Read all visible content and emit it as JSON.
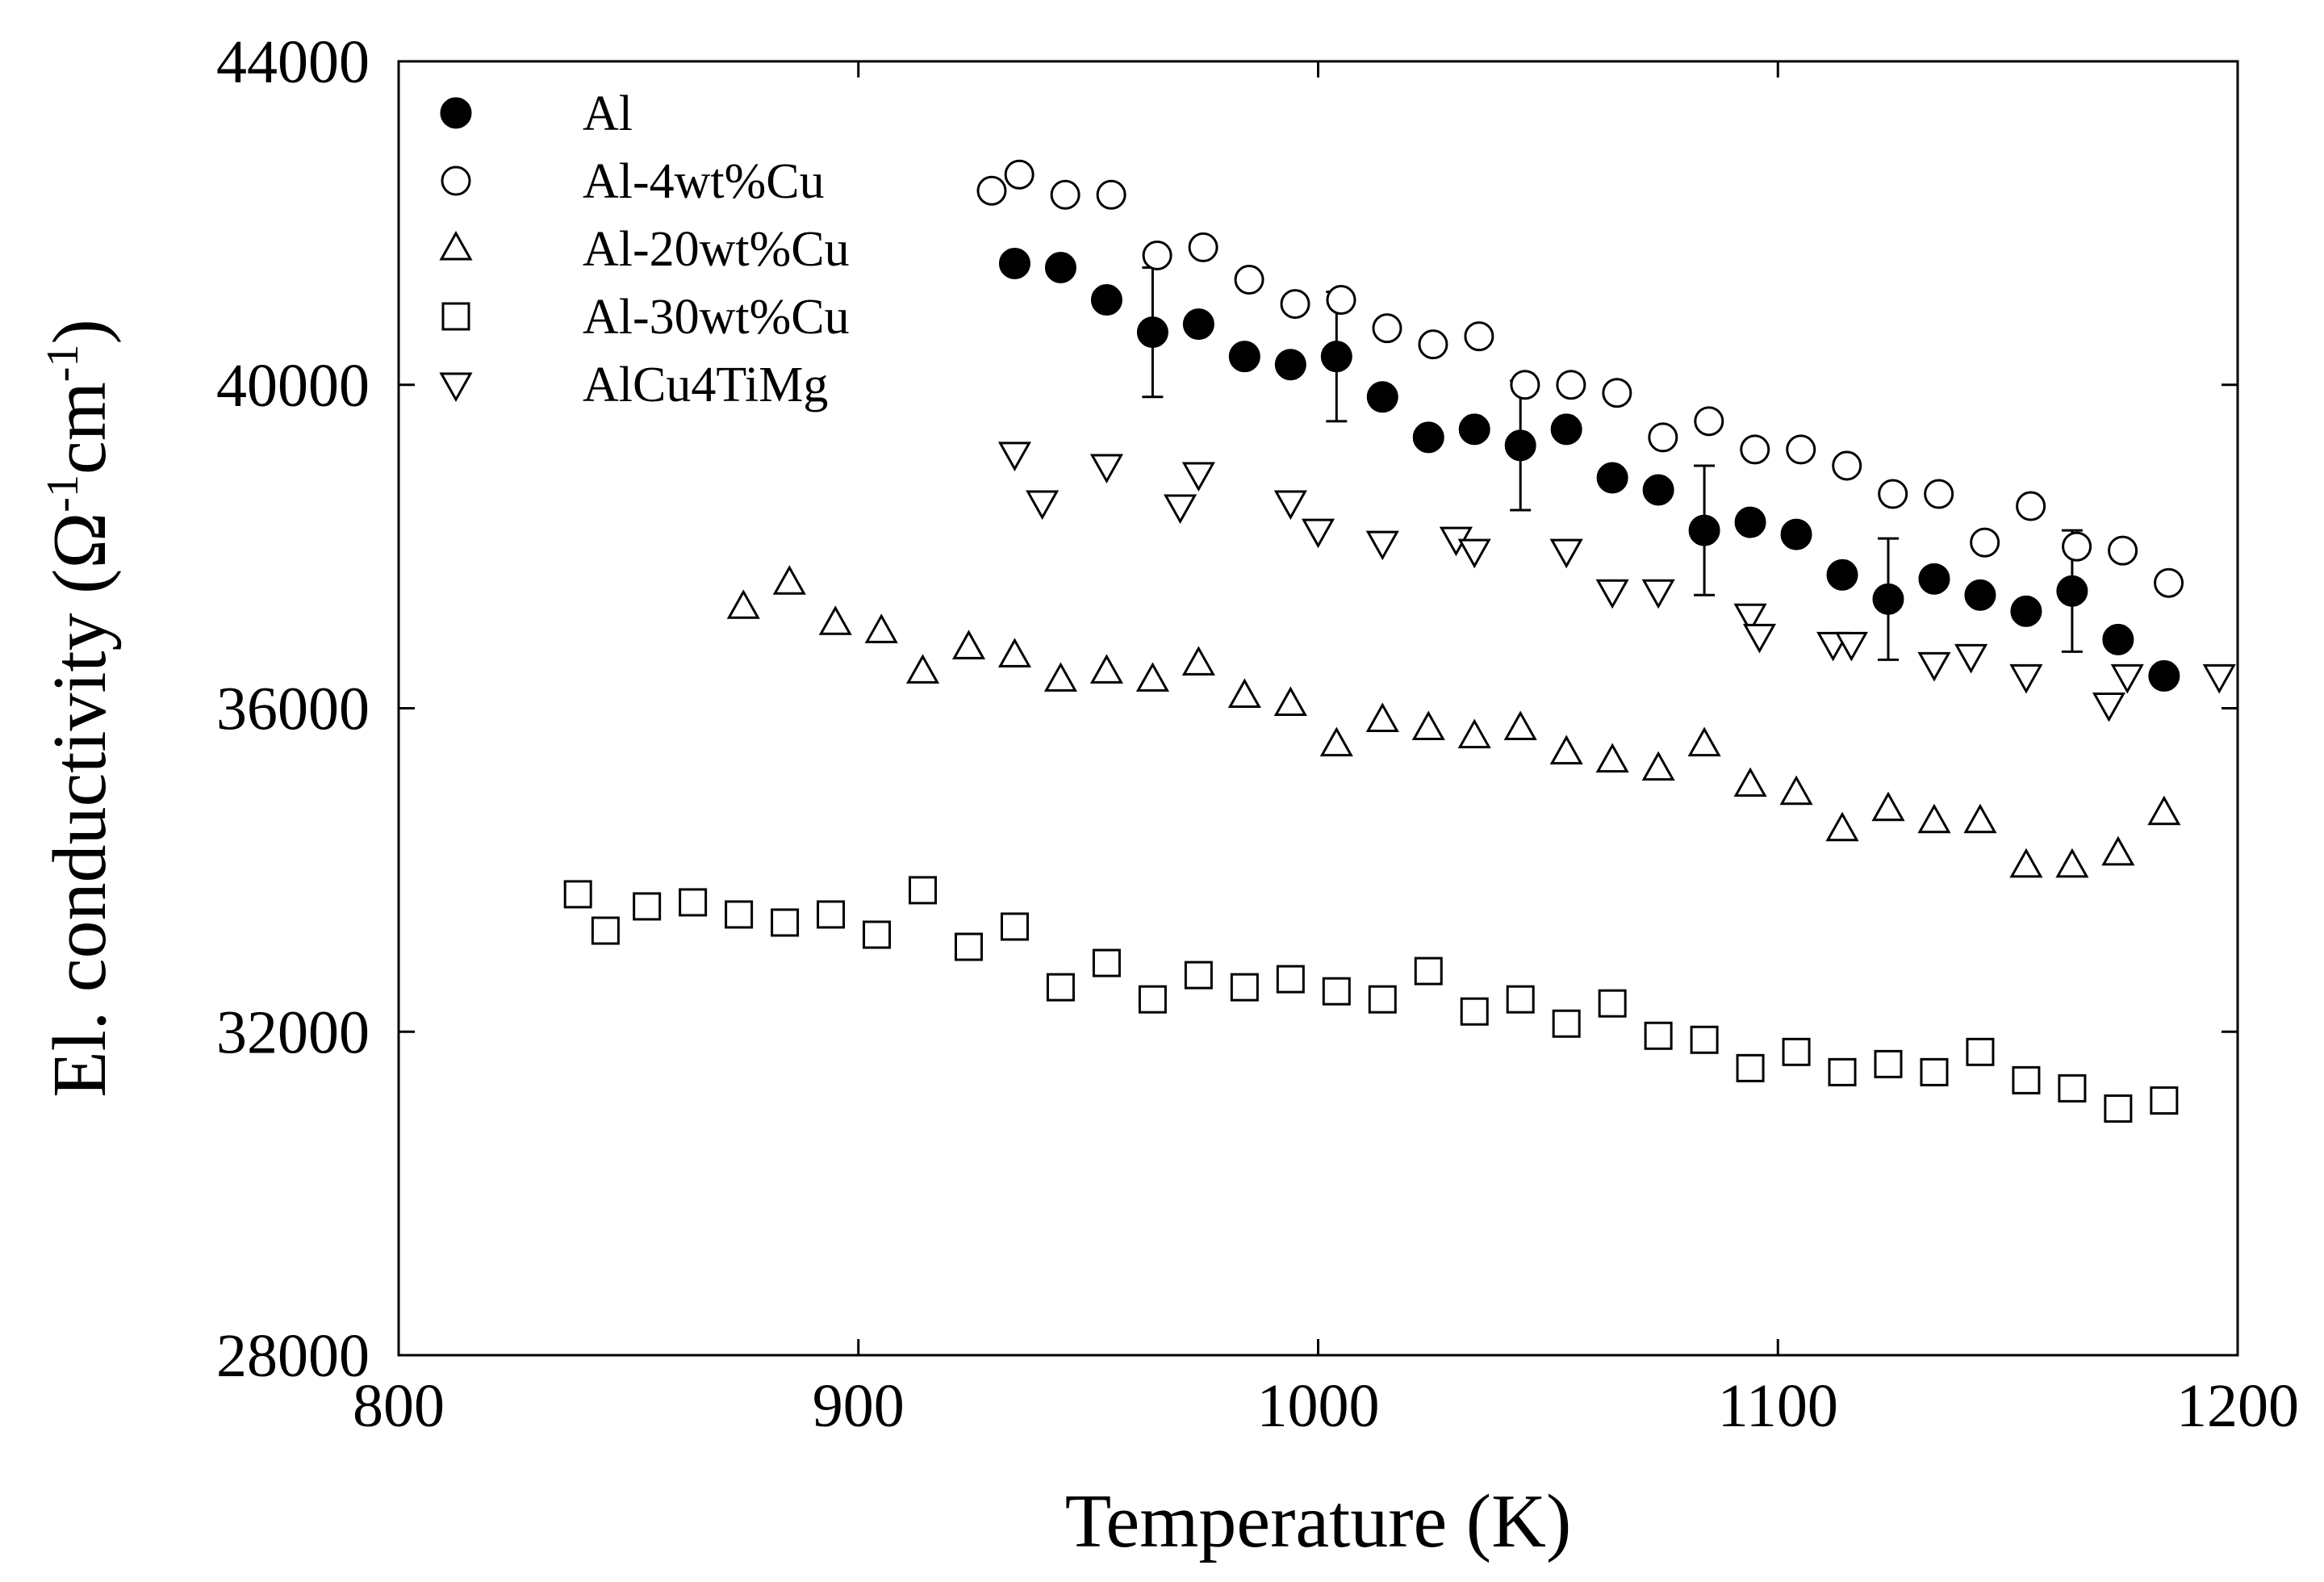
{
  "chart_data": {
    "type": "scatter",
    "xlabel": "Temperature (K)",
    "ylabel": {
      "main": "El. conductivity (",
      "omega": "Ω",
      "exp1": "-1",
      "unit": "cm",
      "exp2": "-1",
      "close": ")"
    },
    "xlim": [
      800,
      1200
    ],
    "ylim": [
      28000,
      44000
    ],
    "xticks": [
      800,
      900,
      1000,
      1100,
      1200
    ],
    "yticks": [
      28000,
      32000,
      36000,
      40000,
      44000
    ],
    "grid": false,
    "legend_position": "top-left",
    "series": [
      {
        "name": "Al",
        "marker": "circle-filled",
        "points": [
          [
            934,
            41500
          ],
          [
            944,
            41450
          ],
          [
            954,
            41050
          ],
          [
            964,
            40650
          ],
          [
            974,
            40750
          ],
          [
            984,
            40350
          ],
          [
            994,
            40250
          ],
          [
            1004,
            40350
          ],
          [
            1014,
            39850
          ],
          [
            1024,
            39350
          ],
          [
            1034,
            39450
          ],
          [
            1044,
            39250
          ],
          [
            1054,
            39450
          ],
          [
            1064,
            38850
          ],
          [
            1074,
            38700
          ],
          [
            1084,
            38200
          ],
          [
            1094,
            38300
          ],
          [
            1104,
            38150
          ],
          [
            1114,
            37650
          ],
          [
            1124,
            37350
          ],
          [
            1134,
            37600
          ],
          [
            1144,
            37400
          ],
          [
            1154,
            37200
          ],
          [
            1164,
            37450
          ],
          [
            1174,
            36850
          ],
          [
            1184,
            36400
          ]
        ],
        "error_bars": [
          [
            964,
            40650,
            800
          ],
          [
            1004,
            40350,
            800
          ],
          [
            1044,
            39250,
            800
          ],
          [
            1084,
            38200,
            800
          ],
          [
            1124,
            37350,
            750
          ],
          [
            1164,
            37450,
            750
          ]
        ]
      },
      {
        "name": "Al-4wt%Cu",
        "marker": "circle-open",
        "points": [
          [
            929,
            42400
          ],
          [
            935,
            42600
          ],
          [
            945,
            42350
          ],
          [
            955,
            42350
          ],
          [
            965,
            41600
          ],
          [
            975,
            41700
          ],
          [
            985,
            41300
          ],
          [
            995,
            41000
          ],
          [
            1005,
            41050
          ],
          [
            1015,
            40700
          ],
          [
            1025,
            40500
          ],
          [
            1035,
            40600
          ],
          [
            1045,
            40000
          ],
          [
            1055,
            40000
          ],
          [
            1065,
            39900
          ],
          [
            1075,
            39350
          ],
          [
            1085,
            39550
          ],
          [
            1095,
            39200
          ],
          [
            1105,
            39200
          ],
          [
            1115,
            39000
          ],
          [
            1125,
            38650
          ],
          [
            1135,
            38650
          ],
          [
            1145,
            38050
          ],
          [
            1155,
            38500
          ],
          [
            1165,
            38000
          ],
          [
            1175,
            37950
          ],
          [
            1185,
            37550
          ]
        ]
      },
      {
        "name": "Al-20wt%Cu",
        "marker": "triangle-up",
        "points": [
          [
            875,
            37250
          ],
          [
            885,
            37550
          ],
          [
            895,
            37050
          ],
          [
            905,
            36950
          ],
          [
            914,
            36450
          ],
          [
            924,
            36750
          ],
          [
            934,
            36650
          ],
          [
            944,
            36350
          ],
          [
            954,
            36450
          ],
          [
            964,
            36350
          ],
          [
            974,
            36550
          ],
          [
            984,
            36150
          ],
          [
            994,
            36050
          ],
          [
            1004,
            35550
          ],
          [
            1014,
            35850
          ],
          [
            1024,
            35750
          ],
          [
            1034,
            35650
          ],
          [
            1044,
            35750
          ],
          [
            1054,
            35450
          ],
          [
            1064,
            35350
          ],
          [
            1074,
            35250
          ],
          [
            1084,
            35550
          ],
          [
            1094,
            35050
          ],
          [
            1104,
            34950
          ],
          [
            1114,
            34500
          ],
          [
            1124,
            34750
          ],
          [
            1134,
            34600
          ],
          [
            1144,
            34600
          ],
          [
            1154,
            34050
          ],
          [
            1164,
            34050
          ],
          [
            1174,
            34200
          ],
          [
            1184,
            34700
          ]
        ]
      },
      {
        "name": "Al-30wt%Cu",
        "marker": "square-open",
        "points": [
          [
            839,
            33700
          ],
          [
            845,
            33250
          ],
          [
            854,
            33550
          ],
          [
            864,
            33600
          ],
          [
            874,
            33450
          ],
          [
            884,
            33350
          ],
          [
            894,
            33450
          ],
          [
            904,
            33200
          ],
          [
            914,
            33750
          ],
          [
            924,
            33050
          ],
          [
            934,
            33300
          ],
          [
            944,
            32550
          ],
          [
            954,
            32850
          ],
          [
            964,
            32400
          ],
          [
            974,
            32700
          ],
          [
            984,
            32550
          ],
          [
            994,
            32650
          ],
          [
            1004,
            32500
          ],
          [
            1014,
            32400
          ],
          [
            1024,
            32750
          ],
          [
            1034,
            32250
          ],
          [
            1044,
            32400
          ],
          [
            1054,
            32100
          ],
          [
            1064,
            32350
          ],
          [
            1074,
            31950
          ],
          [
            1084,
            31900
          ],
          [
            1094,
            31550
          ],
          [
            1104,
            31750
          ],
          [
            1114,
            31500
          ],
          [
            1124,
            31600
          ],
          [
            1134,
            31500
          ],
          [
            1144,
            31750
          ],
          [
            1154,
            31400
          ],
          [
            1164,
            31300
          ],
          [
            1174,
            31050
          ],
          [
            1184,
            31150
          ]
        ]
      },
      {
        "name": "AlCu4TiMg",
        "marker": "triangle-down",
        "points": [
          [
            934,
            39150
          ],
          [
            940,
            38550
          ],
          [
            954,
            39000
          ],
          [
            970,
            38500
          ],
          [
            974,
            38900
          ],
          [
            994,
            38550
          ],
          [
            1000,
            38200
          ],
          [
            1014,
            38050
          ],
          [
            1030,
            38100
          ],
          [
            1034,
            37950
          ],
          [
            1054,
            37950
          ],
          [
            1064,
            37450
          ],
          [
            1074,
            37450
          ],
          [
            1094,
            37150
          ],
          [
            1096,
            36900
          ],
          [
            1112,
            36800
          ],
          [
            1116,
            36800
          ],
          [
            1134,
            36550
          ],
          [
            1142,
            36650
          ],
          [
            1154,
            36400
          ],
          [
            1172,
            36050
          ],
          [
            1176,
            36400
          ],
          [
            1196,
            36400
          ]
        ]
      }
    ]
  }
}
